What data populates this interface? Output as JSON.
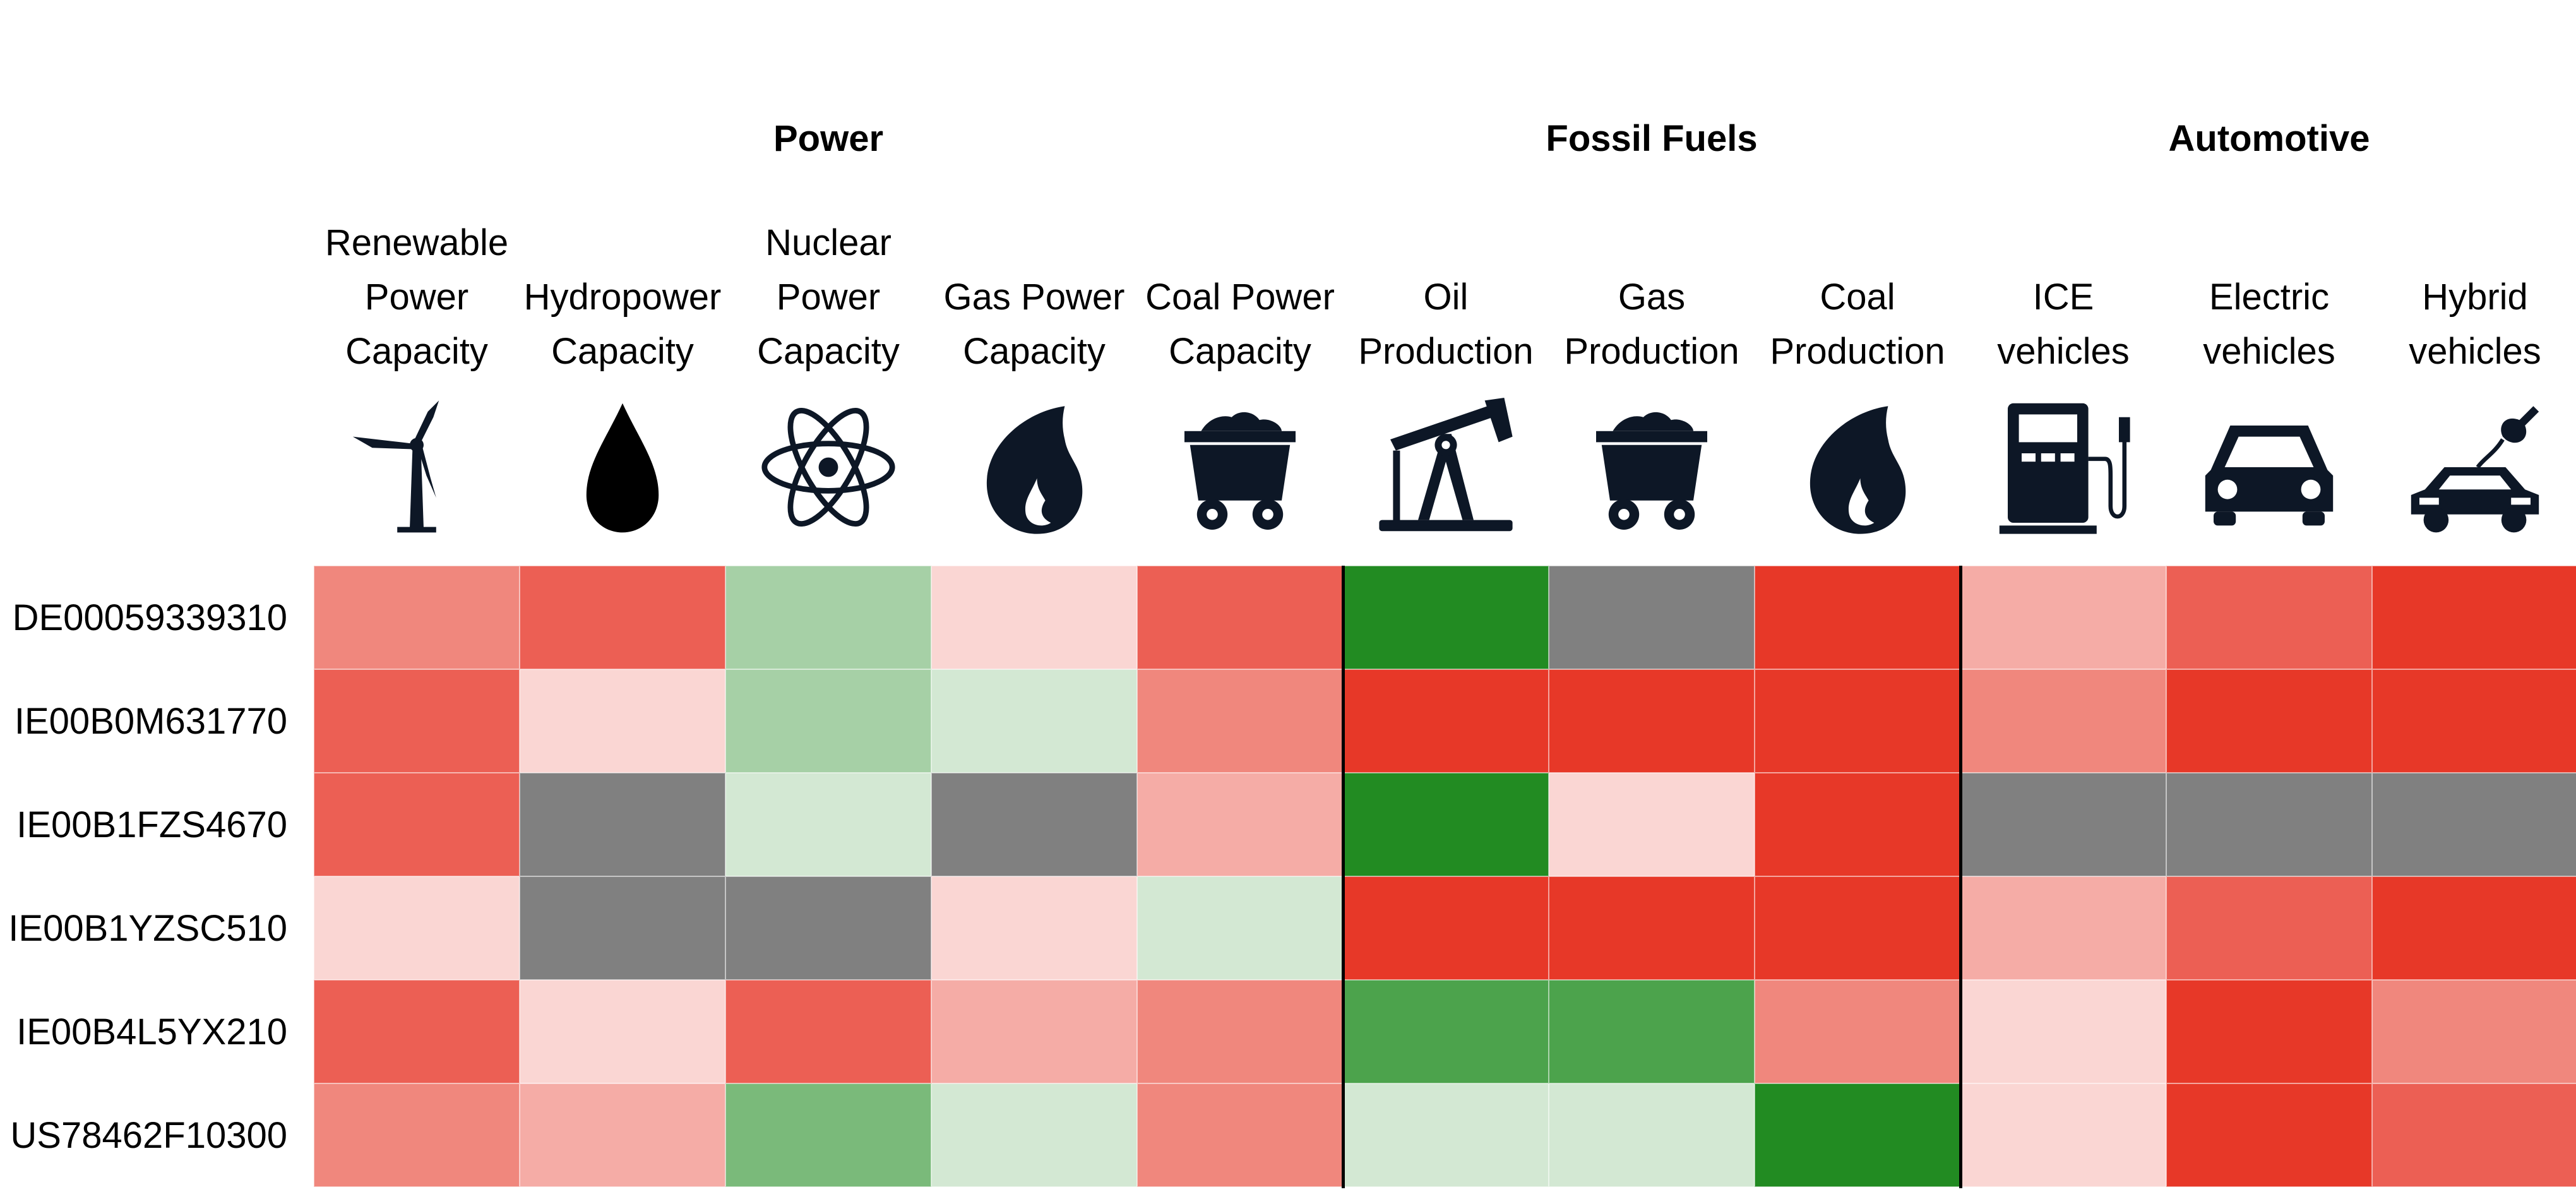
{
  "chart_data": {
    "type": "heatmap",
    "title": "",
    "groups": [
      {
        "name": "Power",
        "start": 0,
        "end": 4
      },
      {
        "name": "Fossil Fuels",
        "start": 5,
        "end": 7
      },
      {
        "name": "Automotive",
        "start": 8,
        "end": 10
      }
    ],
    "columns": [
      {
        "label_lines": [
          "Renewable",
          "Power",
          "Capacity"
        ],
        "icon": "wind-turbine-icon"
      },
      {
        "label_lines": [
          "Hydropower",
          "Capacity"
        ],
        "icon": "water-drop-icon"
      },
      {
        "label_lines": [
          "Nuclear",
          "Power",
          "Capacity"
        ],
        "icon": "atom-icon"
      },
      {
        "label_lines": [
          "Gas Power",
          "Capacity"
        ],
        "icon": "flame-icon"
      },
      {
        "label_lines": [
          "Coal Power",
          "Capacity"
        ],
        "icon": "coal-cart-icon"
      },
      {
        "label_lines": [
          "Oil",
          "Production"
        ],
        "icon": "oil-pump-icon"
      },
      {
        "label_lines": [
          "Gas",
          "Production"
        ],
        "icon": "coal-cart-icon"
      },
      {
        "label_lines": [
          "Coal",
          "Production"
        ],
        "icon": "flame-icon"
      },
      {
        "label_lines": [
          "ICE",
          "vehicles"
        ],
        "icon": "fuel-pump-icon"
      },
      {
        "label_lines": [
          "Electric",
          "vehicles"
        ],
        "icon": "car-icon"
      },
      {
        "label_lines": [
          "Hybrid",
          "vehicles"
        ],
        "icon": "plug-car-icon"
      }
    ],
    "rows": [
      "DE00059339310",
      "IE00B0M631770",
      "IE00B1FZS4670",
      "IE00B1YZSC510",
      "IE00B4L5YX210",
      "US78462F10300"
    ],
    "cell_colors": [
      [
        "#f0877d",
        "#ec5f54",
        "#a6d0a6",
        "#fad6d3",
        "#ec5f54",
        "#228b22",
        "#808080",
        "#e73828",
        "#f5aca6",
        "#ec5f54",
        "#e73828"
      ],
      [
        "#ec5f54",
        "#fad6d3",
        "#a6d0a6",
        "#d3e8d3",
        "#f0877d",
        "#e73828",
        "#e73828",
        "#e73828",
        "#f0877d",
        "#e73828",
        "#e73828"
      ],
      [
        "#ec5f54",
        "#808080",
        "#d3e8d3",
        "#808080",
        "#f5aca6",
        "#228b22",
        "#fad6d3",
        "#e73828",
        "#808080",
        "#808080",
        "#808080"
      ],
      [
        "#fad6d3",
        "#808080",
        "#808080",
        "#fad6d3",
        "#d3e8d3",
        "#e73828",
        "#e73828",
        "#e73828",
        "#f5aca6",
        "#ec5f54",
        "#e73828"
      ],
      [
        "#ec5f54",
        "#fad6d3",
        "#ec5f54",
        "#f5aca6",
        "#f0877d",
        "#4ca34c",
        "#4ca34c",
        "#f0877d",
        "#fad6d3",
        "#e73828",
        "#f0877d"
      ],
      [
        "#f0877d",
        "#f5aca6",
        "#7aba7a",
        "#d3e8d3",
        "#f0877d",
        "#d3e8d3",
        "#d3e8d3",
        "#228b22",
        "#fad6d3",
        "#e73828",
        "#ec5f54"
      ]
    ],
    "icon_color": "#0d1726",
    "grid": false,
    "legend": "none"
  }
}
